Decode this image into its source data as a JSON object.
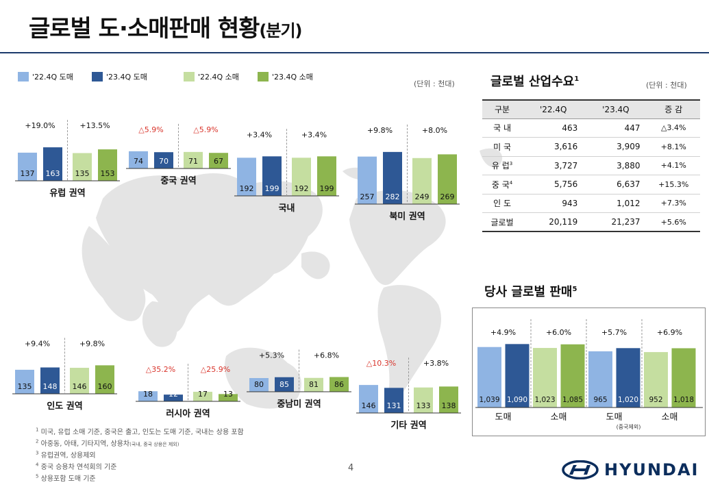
{
  "page": {
    "title": "글로벌 도·소매판매 현황",
    "title_suffix": "(분기)",
    "unit": "(단위 : 천대)",
    "page_number": "4",
    "logo_text": "HYUNDAI"
  },
  "colors": {
    "q22_wholesale": "#8fb4e3",
    "q23_wholesale": "#2e5895",
    "q22_retail": "#c5dea0",
    "q23_retail": "#8db54e",
    "negative": "#d9342b",
    "map": "#e4e4e4"
  },
  "legend": [
    "'22.4Q 도매",
    "'23.4Q 도매",
    "'22.4Q 소매",
    "'23.4Q 소매"
  ],
  "chart_data": [
    {
      "type": "bar",
      "title": "유럽 권역",
      "categories": [
        "'22.4Q 도매",
        "'23.4Q 도매",
        "'22.4Q 소매",
        "'23.4Q 소매"
      ],
      "values": [
        137,
        163,
        135,
        153
      ],
      "changes": [
        "+19.0%",
        "+13.5%"
      ]
    },
    {
      "type": "bar",
      "title": "중국 권역",
      "categories": [
        "'22.4Q 도매",
        "'23.4Q 도매",
        "'22.4Q 소매",
        "'23.4Q 소매"
      ],
      "values": [
        74,
        70,
        71,
        67
      ],
      "changes": [
        "△5.9%",
        "△5.9%"
      ]
    },
    {
      "type": "bar",
      "title": "국내",
      "categories": [
        "'22.4Q 도매",
        "'23.4Q 도매",
        "'22.4Q 소매",
        "'23.4Q 소매"
      ],
      "values": [
        192,
        199,
        192,
        199
      ],
      "changes": [
        "+3.4%",
        "+3.4%"
      ]
    },
    {
      "type": "bar",
      "title": "북미 권역",
      "categories": [
        "'22.4Q 도매",
        "'23.4Q 도매",
        "'22.4Q 소매",
        "'23.4Q 소매"
      ],
      "values": [
        257,
        282,
        249,
        269
      ],
      "changes": [
        "+9.8%",
        "+8.0%"
      ]
    },
    {
      "type": "bar",
      "title": "인도 권역",
      "categories": [
        "'22.4Q 도매",
        "'23.4Q 도매",
        "'22.4Q 소매",
        "'23.4Q 소매"
      ],
      "values": [
        135,
        148,
        146,
        160
      ],
      "changes": [
        "+9.4%",
        "+9.8%"
      ]
    },
    {
      "type": "bar",
      "title": "러시아 권역",
      "categories": [
        "'22.4Q 도매",
        "'23.4Q 도매",
        "'22.4Q 소매",
        "'23.4Q 소매"
      ],
      "values": [
        18,
        12,
        17,
        13
      ],
      "changes": [
        "△35.2%",
        "△25.9%"
      ]
    },
    {
      "type": "bar",
      "title": "중남미 권역",
      "categories": [
        "'22.4Q 도매",
        "'23.4Q 도매",
        "'22.4Q 소매",
        "'23.4Q 소매"
      ],
      "values": [
        80,
        85,
        81,
        86
      ],
      "changes": [
        "+5.3%",
        "+6.8%"
      ]
    },
    {
      "type": "bar",
      "title": "기타 권역",
      "title_note": "2",
      "categories": [
        "'22.4Q 도매",
        "'23.4Q 도매",
        "'22.4Q 소매",
        "'23.4Q 소매"
      ],
      "values": [
        146,
        131,
        133,
        138
      ],
      "changes": [
        "△10.3%",
        "+3.8%"
      ]
    },
    {
      "type": "bar",
      "title": "당사 글로벌 판매",
      "title_note": "5",
      "groups": [
        "도매",
        "소매",
        "도매",
        "소매"
      ],
      "group_note": "(중국제외)",
      "values": [
        1039,
        1090,
        1023,
        1085,
        965,
        1020,
        952,
        1018
      ],
      "changes": [
        "+4.9%",
        "+6.0%",
        "+5.7%",
        "+6.9%"
      ]
    }
  ],
  "demand": {
    "title": "글로벌 산업수요",
    "title_note": "1",
    "unit": "(단위 : 천대)",
    "headers": [
      "구분",
      "'22.4Q",
      "'23.4Q",
      "증 감"
    ],
    "rows": [
      {
        "name": "국 내",
        "note": "",
        "q22": "463",
        "q23": "447",
        "change": "△3.4%"
      },
      {
        "name": "미 국",
        "note": "",
        "q22": "3,616",
        "q23": "3,909",
        "change": "+8.1%"
      },
      {
        "name": "유 럽",
        "note": "3",
        "q22": "3,727",
        "q23": "3,880",
        "change": "+4.1%"
      },
      {
        "name": "중 국",
        "note": "4",
        "q22": "5,756",
        "q23": "6,637",
        "change": "+15.3%"
      },
      {
        "name": "인 도",
        "note": "",
        "q22": "943",
        "q23": "1,012",
        "change": "+7.3%"
      },
      {
        "name": "글로벌",
        "note": "",
        "q22": "20,119",
        "q23": "21,237",
        "change": "+5.6%"
      }
    ]
  },
  "footnotes": [
    {
      "mark": "1",
      "text": "미국, 유럽 소매 기준, 중국은 출고, 인도는 도매 기준, 국내는 상용 포함",
      "small": ""
    },
    {
      "mark": "2",
      "text": "아중동, 아태, 기타지역, 상용차",
      "small": "(국내, 중국 상용은 제외)"
    },
    {
      "mark": "3",
      "text": "유럽권역, 상용제외",
      "small": ""
    },
    {
      "mark": "4",
      "text": "중국 승용차 연석회의 기준",
      "small": ""
    },
    {
      "mark": "5",
      "text": "상용포함 도매 기준",
      "small": ""
    }
  ]
}
